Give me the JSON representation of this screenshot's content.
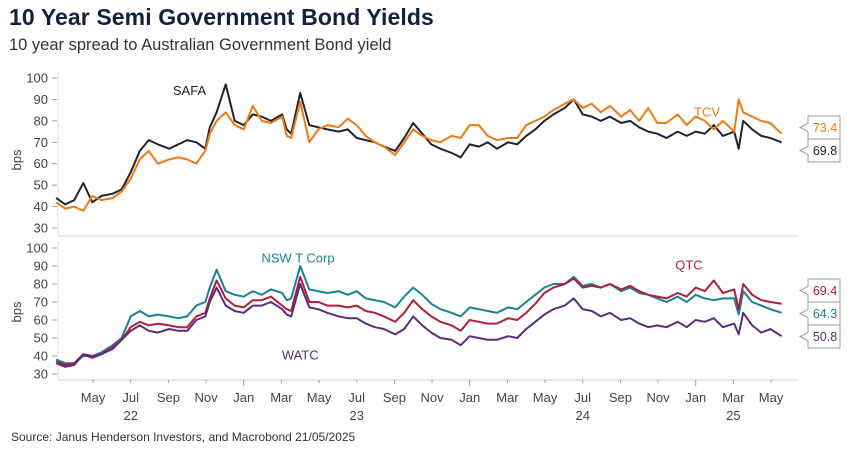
{
  "header": {
    "title": "10 Year Semi Government Bond Yields",
    "subtitle": "10 year spread to Australian Government Bond yield"
  },
  "footer": {
    "source": "Source: Janus Henderson Investors,  and Macrobond  21/05/2025"
  },
  "colors": {
    "SAFA": "#1f2433",
    "TCV": "#ef7a14",
    "NSW T Corp": "#1a7f9c",
    "QTC": "#b01e3a",
    "WATC": "#5a2c7a",
    "axis": "#d9d9d9",
    "tick_text": "#444444"
  },
  "chart_data": [
    {
      "type": "line",
      "panel": "top",
      "title": "",
      "xlabel": "",
      "ylabel": "bps",
      "ylim": [
        30,
        100
      ],
      "yticks": [
        30,
        40,
        50,
        60,
        70,
        80,
        90,
        100
      ],
      "x_ticks": [
        {
          "label": "May",
          "date": "2022-05"
        },
        {
          "label": "Jul",
          "date": "2022-07"
        },
        {
          "label": "Sep",
          "date": "2022-09"
        },
        {
          "label": "Nov",
          "date": "2022-11"
        },
        {
          "label": "Jan",
          "date": "2023-01"
        },
        {
          "label": "Mar",
          "date": "2023-03"
        },
        {
          "label": "May",
          "date": "2023-05"
        },
        {
          "label": "Jul",
          "date": "2023-07"
        },
        {
          "label": "Sep",
          "date": "2023-09"
        },
        {
          "label": "Nov",
          "date": "2023-11"
        },
        {
          "label": "Jan",
          "date": "2024-01"
        },
        {
          "label": "Mar",
          "date": "2024-03"
        },
        {
          "label": "May",
          "date": "2024-05"
        },
        {
          "label": "Jul",
          "date": "2024-07"
        },
        {
          "label": "Sep",
          "date": "2024-09"
        },
        {
          "label": "Nov",
          "date": "2024-11"
        },
        {
          "label": "Jan",
          "date": "2025-01"
        },
        {
          "label": "Mar",
          "date": "2025-03"
        },
        {
          "label": "May",
          "date": "2025-05"
        }
      ],
      "year_labels": [
        {
          "label": "22",
          "date": "2022-07"
        },
        {
          "label": "23",
          "date": "2023-07"
        },
        {
          "label": "24",
          "date": "2024-07"
        },
        {
          "label": "25",
          "date": "2025-03"
        }
      ],
      "x_range_months": [
        2022.17,
        2025.42
      ],
      "series": [
        {
          "name": "SAFA",
          "label_text": "SAFA",
          "end_value": "69.8",
          "x": [
            2022.17,
            2022.21,
            2022.25,
            2022.29,
            2022.33,
            2022.37,
            2022.42,
            2022.46,
            2022.5,
            2022.54,
            2022.58,
            2022.62,
            2022.67,
            2022.71,
            2022.75,
            2022.79,
            2022.83,
            2022.85,
            2022.88,
            2022.92,
            2022.96,
            2023.0,
            2023.04,
            2023.08,
            2023.12,
            2023.17,
            2023.19,
            2023.21,
            2023.25,
            2023.29,
            2023.33,
            2023.37,
            2023.42,
            2023.46,
            2023.5,
            2023.54,
            2023.58,
            2023.62,
            2023.67,
            2023.71,
            2023.75,
            2023.79,
            2023.83,
            2023.87,
            2023.92,
            2023.96,
            2024.0,
            2024.04,
            2024.08,
            2024.12,
            2024.17,
            2024.21,
            2024.25,
            2024.29,
            2024.33,
            2024.37,
            2024.42,
            2024.46,
            2024.5,
            2024.54,
            2024.58,
            2024.62,
            2024.67,
            2024.71,
            2024.75,
            2024.79,
            2024.83,
            2024.87,
            2024.92,
            2024.96,
            2025.0,
            2025.04,
            2025.08,
            2025.12,
            2025.17,
            2025.19,
            2025.21,
            2025.25,
            2025.29,
            2025.33,
            2025.38
          ],
          "values": [
            44,
            41,
            43,
            51,
            42,
            45,
            46,
            48,
            56,
            66,
            71,
            69,
            67,
            69,
            71,
            70,
            67,
            77,
            84,
            97,
            80,
            78,
            83,
            82,
            80,
            83,
            76,
            74,
            93,
            78,
            77,
            76,
            75,
            76,
            72,
            71,
            70,
            68,
            66,
            72,
            79,
            74,
            69,
            67,
            65,
            63,
            69,
            68,
            70,
            67,
            70,
            69,
            73,
            76,
            80,
            83,
            86,
            90,
            83,
            82,
            80,
            82,
            79,
            80,
            77,
            75,
            74,
            72,
            75,
            73,
            75,
            74,
            78,
            73,
            75,
            67,
            80,
            76,
            73,
            72,
            70
          ]
        },
        {
          "name": "TCV",
          "label_text": "TCV",
          "end_value": "73.4",
          "x": [
            2022.17,
            2022.21,
            2022.25,
            2022.29,
            2022.33,
            2022.37,
            2022.42,
            2022.46,
            2022.5,
            2022.54,
            2022.58,
            2022.62,
            2022.67,
            2022.71,
            2022.75,
            2022.79,
            2022.83,
            2022.85,
            2022.88,
            2022.92,
            2022.96,
            2023.0,
            2023.04,
            2023.08,
            2023.12,
            2023.17,
            2023.19,
            2023.21,
            2023.25,
            2023.29,
            2023.33,
            2023.37,
            2023.42,
            2023.46,
            2023.5,
            2023.54,
            2023.58,
            2023.62,
            2023.67,
            2023.71,
            2023.75,
            2023.79,
            2023.83,
            2023.87,
            2023.92,
            2023.96,
            2024.0,
            2024.04,
            2024.08,
            2024.12,
            2024.17,
            2024.21,
            2024.25,
            2024.29,
            2024.33,
            2024.37,
            2024.42,
            2024.46,
            2024.5,
            2024.54,
            2024.58,
            2024.62,
            2024.67,
            2024.71,
            2024.75,
            2024.79,
            2024.83,
            2024.87,
            2024.92,
            2024.96,
            2025.0,
            2025.04,
            2025.08,
            2025.12,
            2025.17,
            2025.19,
            2025.21,
            2025.25,
            2025.29,
            2025.33,
            2025.38
          ],
          "values": [
            42,
            39,
            40,
            38,
            45,
            43,
            44,
            47,
            53,
            62,
            66,
            60,
            62,
            63,
            62,
            60,
            66,
            74,
            80,
            84,
            78,
            76,
            87,
            80,
            79,
            82,
            73,
            72,
            89,
            70,
            76,
            78,
            77,
            81,
            78,
            73,
            70,
            68,
            64,
            70,
            76,
            73,
            71,
            70,
            73,
            72,
            78,
            78,
            73,
            71,
            72,
            72,
            78,
            80,
            82,
            85,
            88,
            90,
            86,
            88,
            84,
            87,
            82,
            85,
            80,
            86,
            79,
            79,
            83,
            78,
            82,
            80,
            76,
            80,
            75,
            90,
            84,
            82,
            80,
            79,
            74
          ]
        }
      ]
    },
    {
      "type": "line",
      "panel": "bottom",
      "title": "",
      "xlabel": "",
      "ylabel": "bps",
      "ylim": [
        30,
        100
      ],
      "yticks": [
        30,
        40,
        50,
        60,
        70,
        80,
        90,
        100
      ],
      "x_range_months": [
        2022.17,
        2025.42
      ],
      "series": [
        {
          "name": "NSW T Corp",
          "label_text": "NSW T Corp",
          "end_value": "64.3",
          "x": [
            2022.17,
            2022.21,
            2022.25,
            2022.29,
            2022.33,
            2022.37,
            2022.42,
            2022.46,
            2022.5,
            2022.54,
            2022.58,
            2022.62,
            2022.67,
            2022.71,
            2022.75,
            2022.79,
            2022.83,
            2022.85,
            2022.88,
            2022.92,
            2022.96,
            2023.0,
            2023.04,
            2023.08,
            2023.12,
            2023.17,
            2023.19,
            2023.21,
            2023.25,
            2023.29,
            2023.33,
            2023.37,
            2023.42,
            2023.46,
            2023.5,
            2023.54,
            2023.58,
            2023.62,
            2023.67,
            2023.71,
            2023.75,
            2023.79,
            2023.83,
            2023.87,
            2023.92,
            2023.96,
            2024.0,
            2024.04,
            2024.08,
            2024.12,
            2024.17,
            2024.21,
            2024.25,
            2024.29,
            2024.33,
            2024.37,
            2024.42,
            2024.46,
            2024.5,
            2024.54,
            2024.58,
            2024.62,
            2024.67,
            2024.71,
            2024.75,
            2024.79,
            2024.83,
            2024.87,
            2024.92,
            2024.96,
            2025.0,
            2025.04,
            2025.08,
            2025.12,
            2025.17,
            2025.19,
            2025.21,
            2025.25,
            2025.29,
            2025.33,
            2025.38
          ],
          "values": [
            38,
            36,
            36,
            40,
            40,
            42,
            46,
            50,
            62,
            65,
            62,
            63,
            62,
            61,
            62,
            68,
            70,
            78,
            88,
            76,
            74,
            73,
            76,
            74,
            77,
            75,
            71,
            72,
            90,
            77,
            76,
            75,
            76,
            74,
            76,
            72,
            71,
            70,
            67,
            73,
            78,
            74,
            69,
            66,
            64,
            62,
            67,
            66,
            65,
            64,
            67,
            66,
            70,
            74,
            78,
            80,
            80,
            84,
            79,
            80,
            78,
            80,
            76,
            78,
            75,
            74,
            72,
            70,
            73,
            70,
            74,
            72,
            71,
            72,
            72,
            63,
            76,
            70,
            68,
            66,
            64
          ]
        },
        {
          "name": "QTC",
          "label_text": "QTC",
          "end_value": "69.4",
          "x": [
            2022.17,
            2022.21,
            2022.25,
            2022.29,
            2022.33,
            2022.37,
            2022.42,
            2022.46,
            2022.5,
            2022.54,
            2022.58,
            2022.62,
            2022.67,
            2022.71,
            2022.75,
            2022.79,
            2022.83,
            2022.85,
            2022.88,
            2022.92,
            2022.96,
            2023.0,
            2023.04,
            2023.08,
            2023.12,
            2023.17,
            2023.19,
            2023.21,
            2023.25,
            2023.29,
            2023.33,
            2023.37,
            2023.42,
            2023.46,
            2023.5,
            2023.54,
            2023.58,
            2023.62,
            2023.67,
            2023.71,
            2023.75,
            2023.79,
            2023.83,
            2023.87,
            2023.92,
            2023.96,
            2024.0,
            2024.04,
            2024.08,
            2024.12,
            2024.17,
            2024.21,
            2024.25,
            2024.29,
            2024.33,
            2024.37,
            2024.42,
            2024.46,
            2024.5,
            2024.54,
            2024.58,
            2024.62,
            2024.67,
            2024.71,
            2024.75,
            2024.79,
            2024.83,
            2024.87,
            2024.92,
            2024.96,
            2025.0,
            2025.04,
            2025.08,
            2025.12,
            2025.17,
            2025.19,
            2025.21,
            2025.25,
            2025.29,
            2025.33,
            2025.38
          ],
          "values": [
            37,
            35,
            36,
            41,
            40,
            41,
            45,
            49,
            56,
            59,
            57,
            58,
            57,
            56,
            56,
            62,
            64,
            72,
            82,
            72,
            68,
            67,
            71,
            71,
            73,
            68,
            66,
            65,
            84,
            70,
            70,
            68,
            68,
            67,
            68,
            65,
            64,
            62,
            59,
            64,
            71,
            66,
            62,
            59,
            57,
            54,
            60,
            59,
            58,
            58,
            61,
            60,
            64,
            69,
            75,
            78,
            80,
            83,
            78,
            79,
            78,
            80,
            77,
            79,
            76,
            74,
            73,
            72,
            75,
            73,
            78,
            76,
            82,
            75,
            77,
            66,
            80,
            74,
            71,
            70,
            69
          ]
        },
        {
          "name": "WATC",
          "label_text": "WATC",
          "end_value": "50.8",
          "x": [
            2022.17,
            2022.21,
            2022.25,
            2022.29,
            2022.33,
            2022.37,
            2022.42,
            2022.46,
            2022.5,
            2022.54,
            2022.58,
            2022.62,
            2022.67,
            2022.71,
            2022.75,
            2022.79,
            2022.83,
            2022.85,
            2022.88,
            2022.92,
            2022.96,
            2023.0,
            2023.04,
            2023.08,
            2023.12,
            2023.17,
            2023.19,
            2023.21,
            2023.25,
            2023.29,
            2023.33,
            2023.37,
            2023.42,
            2023.46,
            2023.5,
            2023.54,
            2023.58,
            2023.62,
            2023.67,
            2023.71,
            2023.75,
            2023.79,
            2023.83,
            2023.87,
            2023.92,
            2023.96,
            2024.0,
            2024.04,
            2024.08,
            2024.12,
            2024.17,
            2024.21,
            2024.25,
            2024.29,
            2024.33,
            2024.37,
            2024.42,
            2024.46,
            2024.5,
            2024.54,
            2024.58,
            2024.62,
            2024.67,
            2024.71,
            2024.75,
            2024.79,
            2024.83,
            2024.87,
            2024.92,
            2024.96,
            2025.0,
            2025.04,
            2025.08,
            2025.12,
            2025.17,
            2025.19,
            2025.21,
            2025.25,
            2025.29,
            2025.33,
            2025.38
          ],
          "values": [
            36,
            34,
            35,
            41,
            39,
            41,
            44,
            49,
            54,
            57,
            54,
            53,
            55,
            54,
            54,
            60,
            62,
            70,
            78,
            68,
            65,
            64,
            68,
            68,
            70,
            66,
            63,
            62,
            80,
            67,
            66,
            64,
            62,
            61,
            61,
            58,
            56,
            55,
            52,
            55,
            62,
            57,
            53,
            50,
            49,
            46,
            51,
            50,
            49,
            49,
            51,
            50,
            55,
            59,
            63,
            66,
            68,
            72,
            66,
            65,
            62,
            64,
            60,
            61,
            58,
            56,
            57,
            56,
            59,
            56,
            60,
            59,
            61,
            56,
            58,
            52,
            64,
            57,
            53,
            55,
            51
          ]
        }
      ]
    }
  ]
}
